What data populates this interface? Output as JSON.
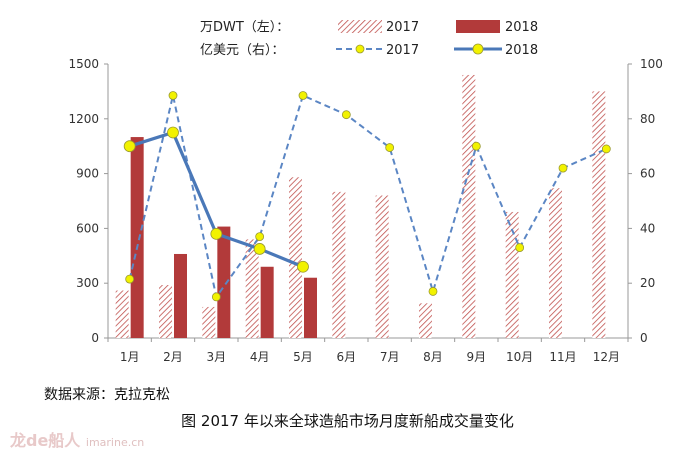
{
  "legend": {
    "bar_axis_label": "万DWT（左）：",
    "line_axis_label": "亿美元（右）：",
    "bar2017": "2017",
    "bar2018": "2018",
    "line2017": "2017",
    "line2018": "2018"
  },
  "source": "数据来源：克拉克松",
  "caption": "图  2017 年以来全球造船市场月度新船成交量变化",
  "watermark": {
    "text": "龙de船人",
    "sub": "imarine.cn"
  },
  "colors": {
    "bar2017": "#c0504d",
    "bar2018": "#b23a3a",
    "line2017": "#5b86c4",
    "line2018": "#4a78b8",
    "marker": "#f2f200"
  },
  "chart_data": {
    "type": "bar",
    "categories": [
      "1月",
      "2月",
      "3月",
      "4月",
      "5月",
      "6月",
      "7月",
      "8月",
      "9月",
      "10月",
      "11月",
      "12月"
    ],
    "left_axis": {
      "ylim": [
        0,
        1500
      ],
      "ticks": [
        "0",
        "300",
        "600",
        "900",
        "1200",
        "1500"
      ]
    },
    "right_axis": {
      "ylim": [
        0,
        100
      ],
      "ticks": [
        "0",
        "20",
        "40",
        "60",
        "80",
        "100"
      ]
    },
    "bars": [
      {
        "name": "2017",
        "values": [
          260,
          290,
          170,
          540,
          880,
          800,
          780,
          190,
          1440,
          690,
          820,
          1350
        ]
      },
      {
        "name": "2018",
        "values": [
          1100,
          460,
          610,
          390,
          330
        ]
      }
    ],
    "lines": [
      {
        "name": "2017",
        "values": [
          21.5,
          88.5,
          15,
          37,
          88.5,
          81.5,
          69.5,
          17,
          70,
          33,
          62,
          69
        ]
      },
      {
        "name": "2018",
        "values": [
          70,
          75,
          38,
          32.5,
          26
        ]
      }
    ]
  }
}
